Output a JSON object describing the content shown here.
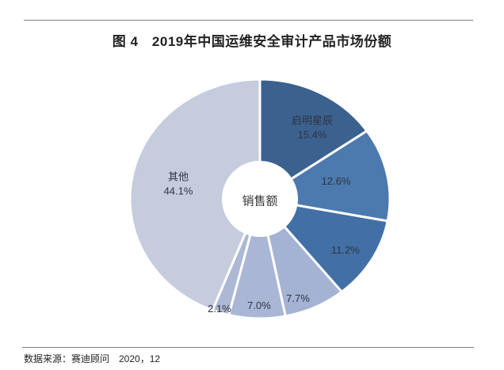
{
  "figure": {
    "caption": "图 4　2019年中国运维安全审计产品市场份额",
    "source": "数据来源：赛迪顾问　2020，12"
  },
  "chart_data": {
    "type": "pie",
    "subtype": "donut",
    "title": "2019年中国运维安全审计产品市场份额",
    "center_label": "销售额",
    "unit": "%",
    "direction": "clockwise",
    "start_angle_deg": 0,
    "legend": "none",
    "slices": [
      {
        "label": "启明星辰",
        "value": 15.4,
        "display": "启明星辰\n15.4%",
        "color": "#3B618F"
      },
      {
        "label": "",
        "value": 12.6,
        "display": "12.6%",
        "color": "#4C79AE"
      },
      {
        "label": "",
        "value": 11.2,
        "display": "11.2%",
        "color": "#4270A6"
      },
      {
        "label": "",
        "value": 7.7,
        "display": "7.7%",
        "color": "#A4B2D4"
      },
      {
        "label": "",
        "value": 7.0,
        "display": "7.0%",
        "color": "#A9B6D6"
      },
      {
        "label": "",
        "value": 2.1,
        "display": "2.1%",
        "color": "#ACB8D4"
      },
      {
        "label": "其他",
        "value": 44.1,
        "display": "其他\n44.1%",
        "color": "#C6CCDE"
      }
    ]
  }
}
